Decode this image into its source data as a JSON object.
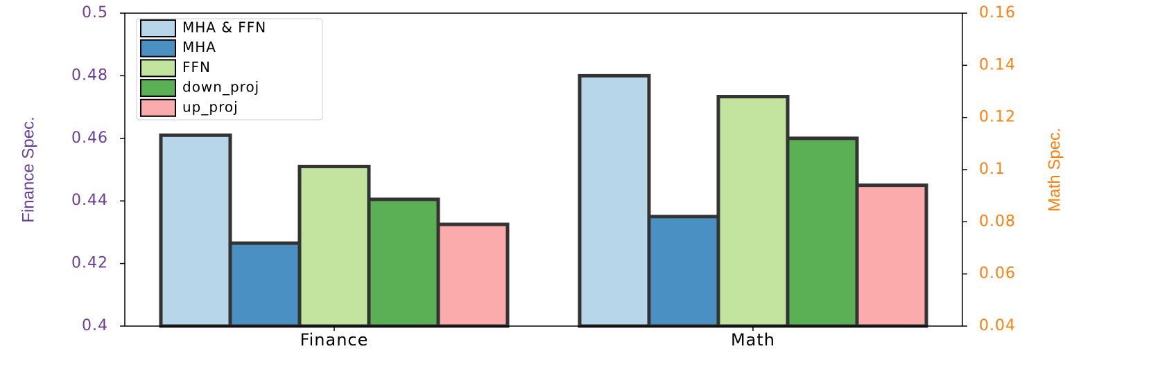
{
  "chart_data": {
    "type": "bar",
    "categories": [
      "Finance",
      "Math"
    ],
    "category_axis": [
      "y",
      "y2"
    ],
    "ylabel": "Finance Spec.",
    "y2label": "Math Spec.",
    "ylabel_color": "#6a3d9a",
    "y2label_color": "#ff7f0e",
    "ylim": [
      0.4,
      0.5
    ],
    "yticks": [
      0.4,
      0.42,
      0.44,
      0.46,
      0.48,
      0.5
    ],
    "y2lim": [
      0.04,
      0.16
    ],
    "y2ticks": [
      0.04,
      0.06,
      0.08,
      0.1,
      0.12,
      0.14,
      0.16
    ],
    "legend": "upper left",
    "edgecolor": "#333333",
    "series": [
      {
        "name": "MHA & FFN",
        "color": "#b8d6e9",
        "values": [
          0.461,
          0.136
        ]
      },
      {
        "name": "MHA",
        "color": "#4a90c2",
        "values": [
          0.4265,
          0.082
        ]
      },
      {
        "name": "FFN",
        "color": "#c2e49e",
        "values": [
          0.451,
          0.128
        ]
      },
      {
        "name": "down_proj",
        "color": "#5bb055",
        "values": [
          0.4405,
          0.112
        ]
      },
      {
        "name": "up_proj",
        "color": "#fbabab",
        "values": [
          0.4325,
          0.094
        ]
      }
    ]
  }
}
